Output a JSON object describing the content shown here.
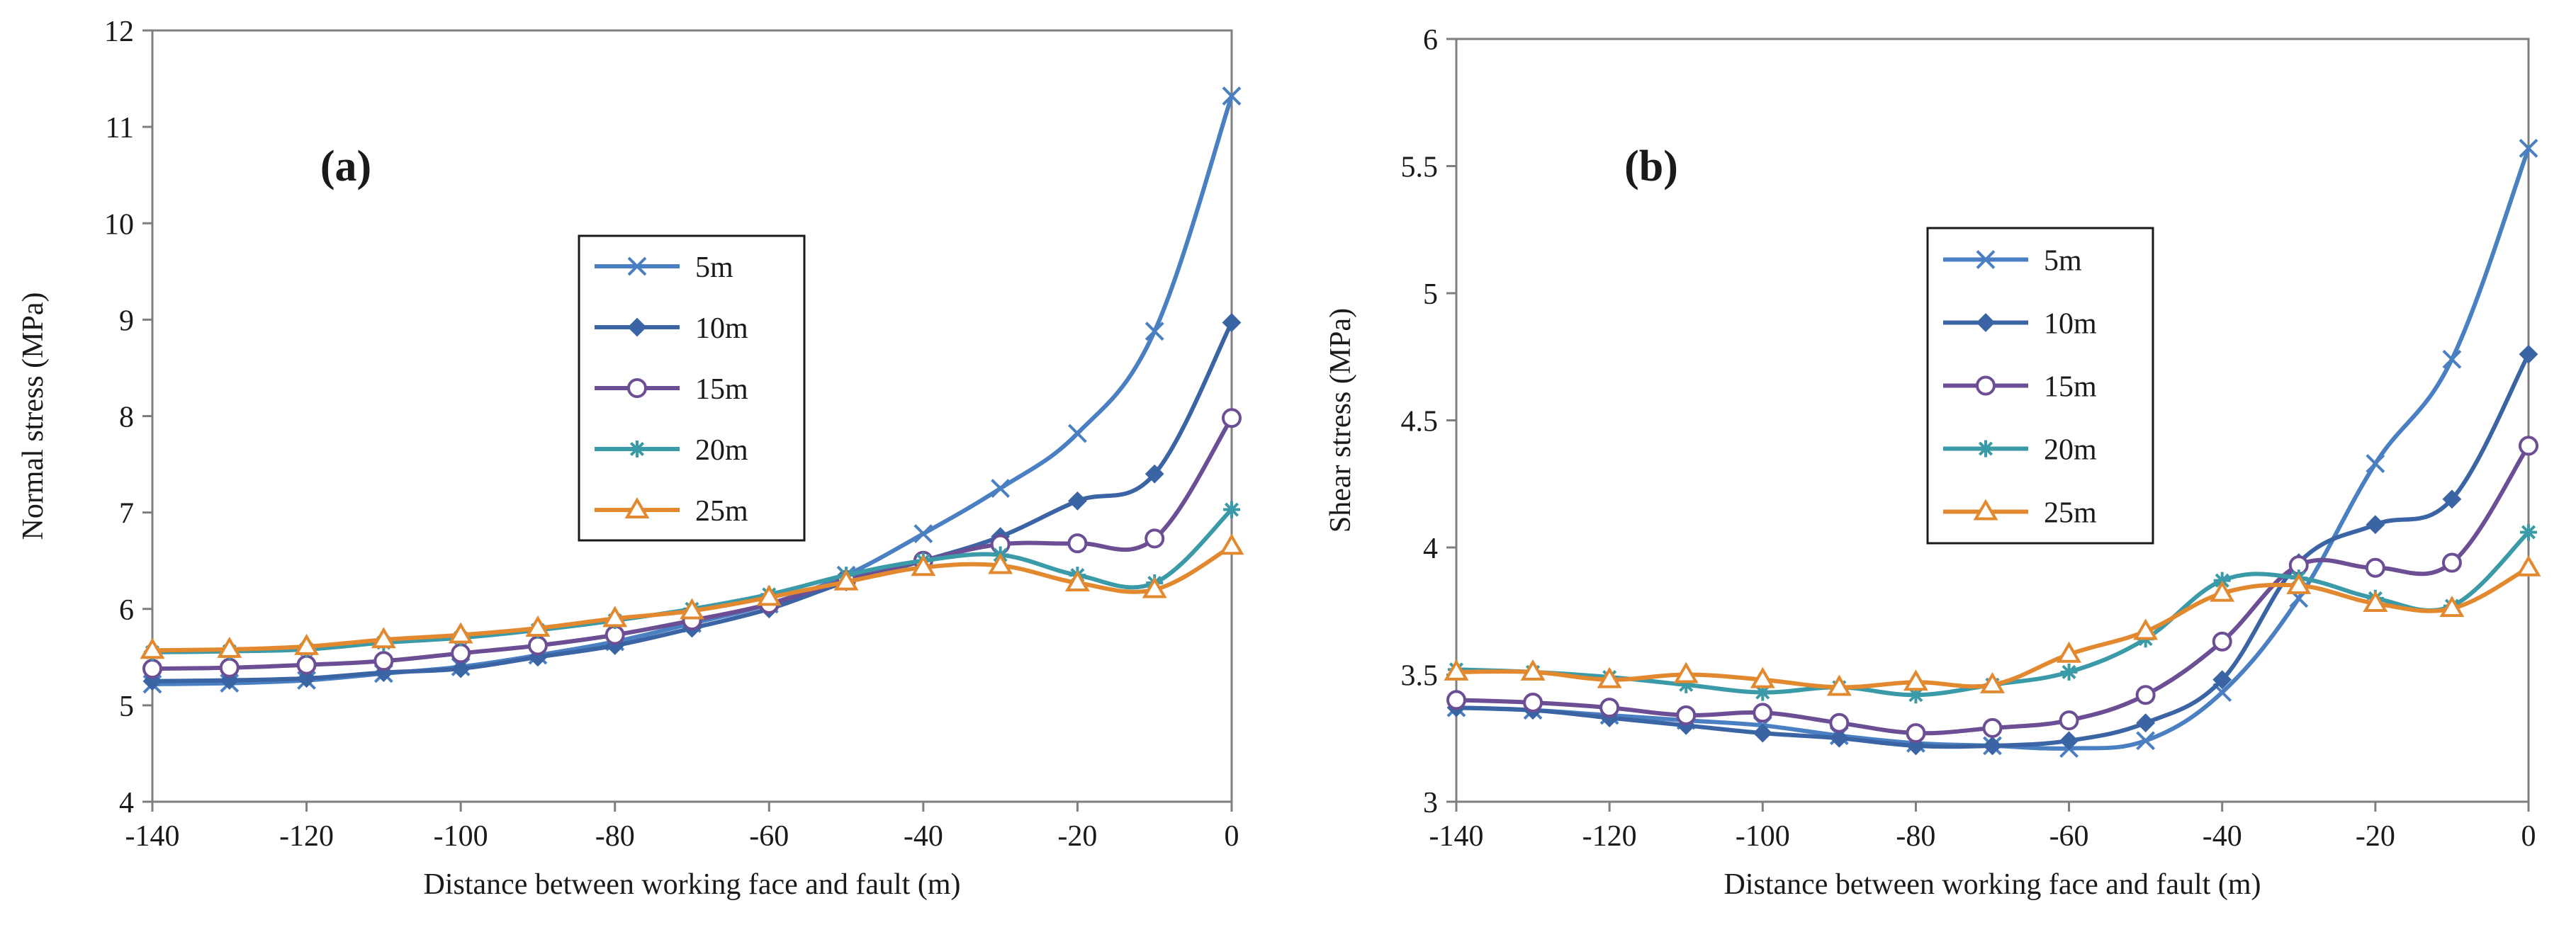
{
  "colors": {
    "5m": "#4a7fc1",
    "10m": "#3a64a4",
    "15m": "#6c4e94",
    "20m": "#3b9aa8",
    "25m": "#e2892f"
  },
  "chart_data": [
    {
      "type": "line",
      "panel_label": "(a)",
      "xlabel": "Distance between working face and fault (m)",
      "ylabel": "Normal stress (MPa)",
      "xlim": [
        -140,
        0
      ],
      "ylim": [
        4,
        12
      ],
      "xticks": [
        -140,
        -120,
        -100,
        -80,
        -60,
        -40,
        -20,
        0
      ],
      "yticks": [
        4,
        5,
        6,
        7,
        8,
        9,
        10,
        11,
        12
      ],
      "x": [
        -140,
        -130,
        -120,
        -110,
        -100,
        -90,
        -80,
        -70,
        -60,
        -50,
        -40,
        -30,
        -20,
        -10,
        0
      ],
      "legend_position": "center",
      "series": [
        {
          "name": "5m",
          "marker": "x",
          "icon": "x-marker-icon",
          "values": [
            5.22,
            5.23,
            5.26,
            5.33,
            5.4,
            5.52,
            5.66,
            5.85,
            6.05,
            6.35,
            6.78,
            7.25,
            7.82,
            8.88,
            11.32
          ]
        },
        {
          "name": "10m",
          "marker": "diamond",
          "icon": "diamond-marker-icon",
          "values": [
            5.25,
            5.26,
            5.28,
            5.34,
            5.38,
            5.5,
            5.62,
            5.8,
            6.0,
            6.28,
            6.5,
            6.75,
            7.12,
            7.4,
            8.97
          ]
        },
        {
          "name": "15m",
          "marker": "circle",
          "icon": "circle-marker-icon",
          "values": [
            5.38,
            5.39,
            5.42,
            5.46,
            5.54,
            5.62,
            5.73,
            5.88,
            6.05,
            6.3,
            6.5,
            6.67,
            6.68,
            6.73,
            7.98
          ]
        },
        {
          "name": "20m",
          "marker": "star",
          "icon": "asterisk-marker-icon",
          "values": [
            5.55,
            5.56,
            5.58,
            5.65,
            5.7,
            5.78,
            5.88,
            6.0,
            6.15,
            6.35,
            6.5,
            6.56,
            6.35,
            6.27,
            7.03
          ]
        },
        {
          "name": "25m",
          "marker": "triangle",
          "icon": "triangle-marker-icon",
          "values": [
            5.57,
            5.58,
            5.61,
            5.68,
            5.73,
            5.8,
            5.9,
            5.98,
            6.12,
            6.28,
            6.43,
            6.45,
            6.27,
            6.2,
            6.65
          ]
        }
      ]
    },
    {
      "type": "line",
      "panel_label": "(b)",
      "xlabel": "Distance between working face and fault (m)",
      "ylabel": "Shear stress (MPa)",
      "xlim": [
        -140,
        0
      ],
      "ylim": [
        3,
        6
      ],
      "xticks": [
        -140,
        -120,
        -100,
        -80,
        -60,
        -40,
        -20,
        0
      ],
      "yticks": [
        3,
        3.5,
        4,
        4.5,
        5,
        5.5,
        6
      ],
      "x": [
        -140,
        -130,
        -120,
        -110,
        -100,
        -90,
        -80,
        -70,
        -60,
        -50,
        -40,
        -30,
        -20,
        -10,
        0
      ],
      "legend_position": "center-left",
      "series": [
        {
          "name": "5m",
          "marker": "x",
          "icon": "x-marker-icon",
          "values": [
            3.37,
            3.36,
            3.34,
            3.32,
            3.3,
            3.26,
            3.23,
            3.22,
            3.21,
            3.24,
            3.43,
            3.8,
            4.33,
            4.74,
            5.57
          ]
        },
        {
          "name": "10m",
          "marker": "diamond",
          "icon": "diamond-marker-icon",
          "values": [
            3.37,
            3.36,
            3.33,
            3.3,
            3.27,
            3.25,
            3.22,
            3.22,
            3.24,
            3.31,
            3.48,
            3.94,
            4.09,
            4.19,
            4.76
          ]
        },
        {
          "name": "15m",
          "marker": "circle",
          "icon": "circle-marker-icon",
          "values": [
            3.4,
            3.39,
            3.37,
            3.34,
            3.35,
            3.31,
            3.27,
            3.29,
            3.32,
            3.42,
            3.63,
            3.93,
            3.92,
            3.94,
            4.4
          ]
        },
        {
          "name": "20m",
          "marker": "star",
          "icon": "asterisk-marker-icon",
          "values": [
            3.52,
            3.51,
            3.49,
            3.46,
            3.43,
            3.45,
            3.42,
            3.46,
            3.51,
            3.64,
            3.87,
            3.88,
            3.8,
            3.77,
            4.06
          ]
        },
        {
          "name": "25m",
          "marker": "triangle",
          "icon": "triangle-marker-icon",
          "values": [
            3.51,
            3.51,
            3.48,
            3.5,
            3.48,
            3.45,
            3.47,
            3.46,
            3.58,
            3.67,
            3.82,
            3.85,
            3.78,
            3.76,
            3.92
          ]
        }
      ]
    }
  ]
}
